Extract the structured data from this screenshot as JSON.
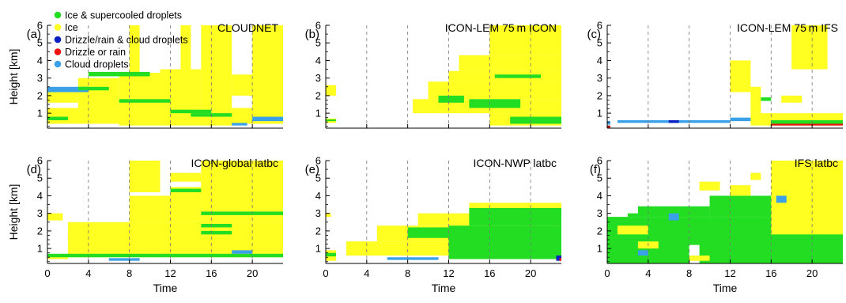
{
  "figure": {
    "panels": [
      {
        "letter": "(a)",
        "title": "CLOUDNET"
      },
      {
        "letter": "(b)",
        "title": "ICON-LEM 75 m ICON"
      },
      {
        "letter": "(c)",
        "title": "ICON-LEM 75 m IFS"
      },
      {
        "letter": "(d)",
        "title": "ICON-global latbc"
      },
      {
        "letter": "(e)",
        "title": "ICON-NWP latbc"
      },
      {
        "letter": "(f)",
        "title": "IFS latbc"
      }
    ],
    "ylabel": "Height [km]",
    "xlabel": "Time",
    "legend": [
      {
        "label": "Ice & supercooled droplets",
        "color": "#22dd22"
      },
      {
        "label": "Ice",
        "color": "#ffff22"
      },
      {
        "label": "Drizzle/rain & cloud droplets",
        "color": "#0a1fbf"
      },
      {
        "label": "Drizzle or rain",
        "color": "#ee1111"
      },
      {
        "label": "Cloud droplets",
        "color": "#3aa0e8"
      }
    ]
  },
  "chart_data": {
    "type": "heatmap",
    "x": {
      "label": "Time",
      "range": [
        0,
        23
      ],
      "ticks": [
        0,
        4,
        8,
        12,
        16,
        20
      ],
      "dashed_gridlines": [
        4,
        8,
        12,
        16,
        20
      ]
    },
    "y": {
      "label": "Height [km]",
      "range": [
        0.15,
        6
      ],
      "ticks": [
        1,
        2,
        3,
        4,
        5,
        6
      ]
    },
    "colors": {
      "green": "#22dd22",
      "yellow": "#ffff22",
      "blue": "#3aa0e8",
      "navy": "#0a1fbf",
      "red": "#ee1111"
    },
    "panels": [
      {
        "letter": "(a)",
        "title": "CLOUDNET",
        "regions": [
          {
            "c": "yellow",
            "x": [
              0,
              23
            ],
            "y": [
              0.4,
              1.3
            ]
          },
          {
            "c": "yellow",
            "x": [
              0,
              3
            ],
            "y": [
              1.6,
              2.2
            ]
          },
          {
            "c": "yellow",
            "x": [
              3,
              7
            ],
            "y": [
              1.3,
              3.0
            ]
          },
          {
            "c": "yellow",
            "x": [
              7,
              11
            ],
            "y": [
              0.3,
              3.3
            ]
          },
          {
            "c": "yellow",
            "x": [
              11,
              15
            ],
            "y": [
              0.3,
              3.5
            ]
          },
          {
            "c": "yellow",
            "x": [
              15,
              18
            ],
            "y": [
              0.3,
              6.0
            ]
          },
          {
            "c": "yellow",
            "x": [
              18,
              21
            ],
            "y": [
              2.0,
              3.2
            ]
          },
          {
            "c": "yellow",
            "x": [
              20,
              23
            ],
            "y": [
              0.4,
              6.0
            ]
          },
          {
            "c": "yellow",
            "x": [
              8,
              9
            ],
            "y": [
              3.3,
              6.0
            ]
          },
          {
            "c": "yellow",
            "x": [
              13,
              14
            ],
            "y": [
              3.5,
              6.0
            ]
          },
          {
            "c": "blue",
            "x": [
              0,
              4
            ],
            "y": [
              2.2,
              2.5
            ]
          },
          {
            "c": "green",
            "x": [
              4,
              10
            ],
            "y": [
              3.1,
              3.35
            ]
          },
          {
            "c": "green",
            "x": [
              0,
              2
            ],
            "y": [
              0.6,
              0.8
            ]
          },
          {
            "c": "green",
            "x": [
              3,
              6
            ],
            "y": [
              2.3,
              2.5
            ]
          },
          {
            "c": "green",
            "x": [
              12,
              16
            ],
            "y": [
              1.0,
              1.2
            ]
          },
          {
            "c": "green",
            "x": [
              7,
              12
            ],
            "y": [
              1.6,
              1.8
            ]
          },
          {
            "c": "green",
            "x": [
              14,
              18
            ],
            "y": [
              0.8,
              1.0
            ]
          },
          {
            "c": "blue",
            "x": [
              20,
              23
            ],
            "y": [
              0.55,
              0.8
            ]
          },
          {
            "c": "blue",
            "x": [
              18,
              19.5
            ],
            "y": [
              0.3,
              0.45
            ]
          }
        ]
      },
      {
        "letter": "(b)",
        "title": "ICON-LEM 75 m ICON",
        "regions": [
          {
            "c": "yellow",
            "x": [
              0,
              1
            ],
            "y": [
              0.45,
              0.7
            ]
          },
          {
            "c": "yellow",
            "x": [
              0,
              1
            ],
            "y": [
              2.0,
              2.6
            ]
          },
          {
            "c": "yellow",
            "x": [
              11,
              13
            ],
            "y": [
              1.2,
              2.2
            ]
          },
          {
            "c": "yellow",
            "x": [
              8.5,
              23
            ],
            "y": [
              1.0,
              1.8
            ]
          },
          {
            "c": "yellow",
            "x": [
              10,
              23
            ],
            "y": [
              1.8,
              2.8
            ]
          },
          {
            "c": "yellow",
            "x": [
              12,
              23
            ],
            "y": [
              2.8,
              3.4
            ]
          },
          {
            "c": "yellow",
            "x": [
              13,
              21
            ],
            "y": [
              3.4,
              4.3
            ]
          },
          {
            "c": "yellow",
            "x": [
              16,
              23
            ],
            "y": [
              4.3,
              6.0
            ]
          },
          {
            "c": "yellow",
            "x": [
              20,
              23
            ],
            "y": [
              3.4,
              4.3
            ]
          },
          {
            "c": "yellow",
            "x": [
              16,
              23
            ],
            "y": [
              0.3,
              1.0
            ]
          },
          {
            "c": "green",
            "x": [
              11,
              13.5
            ],
            "y": [
              1.6,
              2.0
            ]
          },
          {
            "c": "green",
            "x": [
              14,
              19
            ],
            "y": [
              1.3,
              1.8
            ]
          },
          {
            "c": "green",
            "x": [
              16.5,
              21
            ],
            "y": [
              3.0,
              3.2
            ]
          },
          {
            "c": "green",
            "x": [
              18,
              23
            ],
            "y": [
              0.4,
              0.8
            ]
          },
          {
            "c": "green",
            "x": [
              0,
              1
            ],
            "y": [
              0.55,
              0.65
            ]
          }
        ]
      },
      {
        "letter": "(c)",
        "title": "ICON-LEM 75 m IFS",
        "regions": [
          {
            "c": "blue",
            "x": [
              1,
              12
            ],
            "y": [
              0.45,
              0.6
            ]
          },
          {
            "c": "blue",
            "x": [
              12,
              23
            ],
            "y": [
              0.55,
              0.75
            ]
          },
          {
            "c": "navy",
            "x": [
              6,
              7
            ],
            "y": [
              0.45,
              0.6
            ]
          },
          {
            "c": "red",
            "x": [
              0,
              0.3
            ],
            "y": [
              0.15,
              0.3
            ]
          },
          {
            "c": "yellow",
            "x": [
              14,
              23
            ],
            "y": [
              0.3,
              1.0
            ]
          },
          {
            "c": "green",
            "x": [
              16,
              23
            ],
            "y": [
              0.35,
              0.6
            ]
          },
          {
            "c": "red",
            "x": [
              16,
              23
            ],
            "y": [
              0.3,
              0.4
            ]
          },
          {
            "c": "yellow",
            "x": [
              12,
              14
            ],
            "y": [
              2.2,
              4.0
            ]
          },
          {
            "c": "yellow",
            "x": [
              14,
              15
            ],
            "y": [
              1.0,
              2.5
            ]
          },
          {
            "c": "yellow",
            "x": [
              18,
              21.5
            ],
            "y": [
              3.5,
              6.0
            ]
          },
          {
            "c": "yellow",
            "x": [
              17,
              19
            ],
            "y": [
              1.6,
              2.0
            ]
          },
          {
            "c": "green",
            "x": [
              15,
              16
            ],
            "y": [
              1.7,
              1.9
            ]
          },
          {
            "c": "blue",
            "x": [
              0,
              0.3
            ],
            "y": [
              0.35,
              0.55
            ]
          }
        ]
      },
      {
        "letter": "(d)",
        "title": "ICON-global latbc",
        "regions": [
          {
            "c": "yellow",
            "x": [
              0,
              1.5
            ],
            "y": [
              2.6,
              3.0
            ]
          },
          {
            "c": "yellow",
            "x": [
              0,
              2
            ],
            "y": [
              0.4,
              0.6
            ]
          },
          {
            "c": "blue",
            "x": [
              2,
              5
            ],
            "y": [
              1.5,
              1.8
            ]
          },
          {
            "c": "yellow",
            "x": [
              2,
              23
            ],
            "y": [
              0.5,
              2.5
            ]
          },
          {
            "c": "yellow",
            "x": [
              8,
              12
            ],
            "y": [
              2.5,
              4.0
            ]
          },
          {
            "c": "yellow",
            "x": [
              8,
              11
            ],
            "y": [
              4.2,
              6.0
            ]
          },
          {
            "c": "yellow",
            "x": [
              12,
              15
            ],
            "y": [
              2.5,
              4.5
            ]
          },
          {
            "c": "yellow",
            "x": [
              12,
              15
            ],
            "y": [
              4.8,
              5.3
            ]
          },
          {
            "c": "yellow",
            "x": [
              15,
              23
            ],
            "y": [
              2.5,
              6.0
            ]
          },
          {
            "c": "yellow",
            "x": [
              15,
              18
            ],
            "y": [
              2.5,
              4.8
            ]
          },
          {
            "c": "green",
            "x": [
              0,
              23
            ],
            "y": [
              0.5,
              0.7
            ]
          },
          {
            "c": "green",
            "x": [
              15,
              23
            ],
            "y": [
              2.9,
              3.1
            ]
          },
          {
            "c": "green",
            "x": [
              15,
              18
            ],
            "y": [
              2.2,
              2.4
            ]
          },
          {
            "c": "green",
            "x": [
              15,
              18
            ],
            "y": [
              1.8,
              2.0
            ]
          },
          {
            "c": "green",
            "x": [
              12,
              15
            ],
            "y": [
              4.2,
              4.4
            ]
          },
          {
            "c": "blue",
            "x": [
              18,
              20
            ],
            "y": [
              0.7,
              0.9
            ]
          },
          {
            "c": "blue",
            "x": [
              6,
              9
            ],
            "y": [
              0.3,
              0.45
            ]
          }
        ]
      },
      {
        "letter": "(e)",
        "title": "ICON-NWP latbc",
        "regions": [
          {
            "c": "yellow",
            "x": [
              0,
              0.5
            ],
            "y": [
              2.8,
              3.0
            ]
          },
          {
            "c": "yellow",
            "x": [
              0,
              1
            ],
            "y": [
              0.3,
              0.9
            ]
          },
          {
            "c": "green",
            "x": [
              0,
              1
            ],
            "y": [
              0.55,
              0.75
            ]
          },
          {
            "c": "yellow",
            "x": [
              2,
              23
            ],
            "y": [
              0.6,
              1.4
            ]
          },
          {
            "c": "yellow",
            "x": [
              5,
              23
            ],
            "y": [
              1.4,
              2.3
            ]
          },
          {
            "c": "yellow",
            "x": [
              9,
              23
            ],
            "y": [
              2.3,
              3.0
            ]
          },
          {
            "c": "yellow",
            "x": [
              14,
              23
            ],
            "y": [
              3.0,
              3.6
            ]
          },
          {
            "c": "green",
            "x": [
              12,
              23
            ],
            "y": [
              0.4,
              2.3
            ]
          },
          {
            "c": "green",
            "x": [
              14,
              23
            ],
            "y": [
              2.3,
              3.3
            ]
          },
          {
            "c": "green",
            "x": [
              8,
              12
            ],
            "y": [
              1.6,
              2.2
            ]
          },
          {
            "c": "blue",
            "x": [
              6,
              11
            ],
            "y": [
              0.35,
              0.5
            ]
          },
          {
            "c": "navy",
            "x": [
              22.5,
              23
            ],
            "y": [
              0.3,
              0.6
            ]
          },
          {
            "c": "red",
            "x": [
              22.8,
              23
            ],
            "y": [
              0.3,
              0.45
            ]
          }
        ]
      },
      {
        "letter": "(f)",
        "title": "IFS latbc",
        "regions": [
          {
            "c": "green",
            "x": [
              0,
              23
            ],
            "y": [
              0.15,
              2.8
            ]
          },
          {
            "c": "green",
            "x": [
              2,
              10
            ],
            "y": [
              2.8,
              3.4
            ]
          },
          {
            "c": "green",
            "x": [
              10,
              23
            ],
            "y": [
              2.8,
              4.0
            ]
          },
          {
            "c": "yellow",
            "x": [
              16,
              23
            ],
            "y": [
              4.0,
              6.0
            ]
          },
          {
            "c": "yellow",
            "x": [
              9,
              11
            ],
            "y": [
              4.3,
              4.8
            ]
          },
          {
            "c": "yellow",
            "x": [
              12,
              14
            ],
            "y": [
              4.0,
              4.6
            ]
          },
          {
            "c": "yellow",
            "x": [
              14,
              15
            ],
            "y": [
              4.9,
              5.3
            ]
          },
          {
            "c": "yellow",
            "x": [
              16,
              23
            ],
            "y": [
              1.8,
              4.0
            ]
          },
          {
            "c": "yellow",
            "x": [
              1,
              4
            ],
            "y": [
              1.8,
              2.3
            ]
          },
          {
            "c": "yellow",
            "x": [
              3,
              5
            ],
            "y": [
              1.0,
              1.4
            ]
          },
          {
            "c": "blue",
            "x": [
              6,
              7
            ],
            "y": [
              2.6,
              3.0
            ]
          },
          {
            "c": "blue",
            "x": [
              3,
              4
            ],
            "y": [
              0.6,
              0.9
            ]
          },
          {
            "c": "blue",
            "x": [
              16.5,
              17.5
            ],
            "y": [
              3.6,
              4.0
            ]
          },
          {
            "c": "white",
            "x": [
              8,
              9
            ],
            "y": [
              0.15,
              1.2
            ]
          },
          {
            "c": "white",
            "x": [
              0,
              3
            ],
            "y": [
              3.0,
              6.0
            ]
          },
          {
            "c": "yellow",
            "x": [
              8,
              10
            ],
            "y": [
              0.3,
              0.6
            ]
          }
        ]
      }
    ]
  }
}
